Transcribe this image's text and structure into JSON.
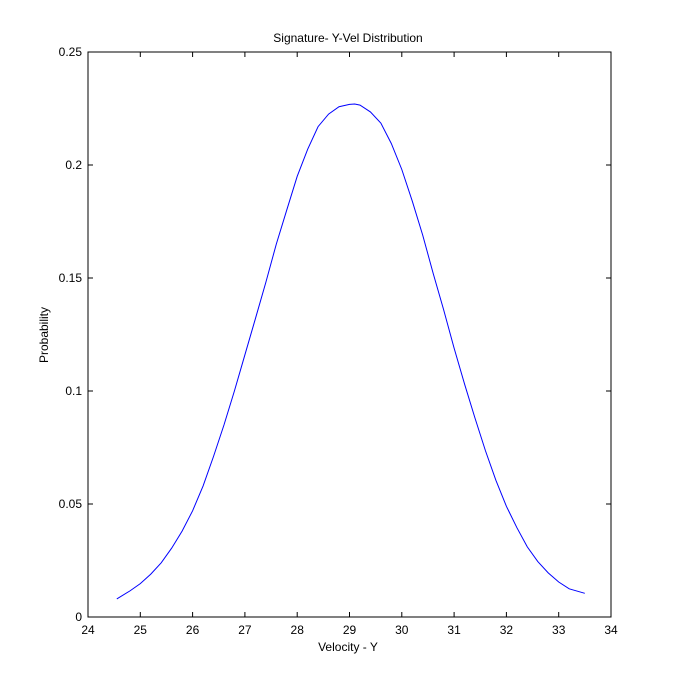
{
  "chart_data": {
    "type": "line",
    "title": "Signature- Y-Vel Distribution",
    "xlabel": "Velocity - Y",
    "ylabel": "Probability",
    "xlim": [
      24,
      34
    ],
    "ylim": [
      0,
      0.25
    ],
    "xticks": [
      24,
      25,
      26,
      27,
      28,
      29,
      30,
      31,
      32,
      33,
      34
    ],
    "xtick_labels": [
      "24",
      "25",
      "26",
      "27",
      "28",
      "29",
      "30",
      "31",
      "32",
      "33",
      "34"
    ],
    "yticks": [
      0,
      0.05,
      0.1,
      0.15,
      0.2,
      0.25
    ],
    "ytick_labels": [
      "0",
      "0.05",
      "0.1",
      "0.15",
      "0.2",
      "0.25"
    ],
    "grid": false,
    "line_color": "#0000ff",
    "series": [
      {
        "x": [
          24.55,
          24.8,
          25.0,
          25.2,
          25.4,
          25.6,
          25.8,
          26.0,
          26.2,
          26.4,
          26.6,
          26.8,
          27.0,
          27.2,
          27.4,
          27.6,
          27.8,
          28.0,
          28.2,
          28.4,
          28.6,
          28.8,
          29.0,
          29.1,
          29.2,
          29.4,
          29.6,
          29.8,
          30.0,
          30.2,
          30.4,
          30.6,
          30.8,
          31.0,
          31.2,
          31.4,
          31.6,
          31.8,
          32.0,
          32.2,
          32.4,
          32.6,
          32.8,
          33.0,
          33.2,
          33.5
        ],
        "y": [
          0.008,
          0.0115,
          0.0148,
          0.019,
          0.024,
          0.0305,
          0.038,
          0.047,
          0.058,
          0.071,
          0.085,
          0.1,
          0.116,
          0.132,
          0.148,
          0.165,
          0.18,
          0.195,
          0.207,
          0.217,
          0.2225,
          0.2258,
          0.2268,
          0.227,
          0.2265,
          0.2235,
          0.2185,
          0.2095,
          0.198,
          0.184,
          0.169,
          0.152,
          0.136,
          0.119,
          0.103,
          0.088,
          0.0735,
          0.0605,
          0.049,
          0.0395,
          0.031,
          0.0245,
          0.0195,
          0.0155,
          0.0125,
          0.0105
        ]
      }
    ]
  }
}
